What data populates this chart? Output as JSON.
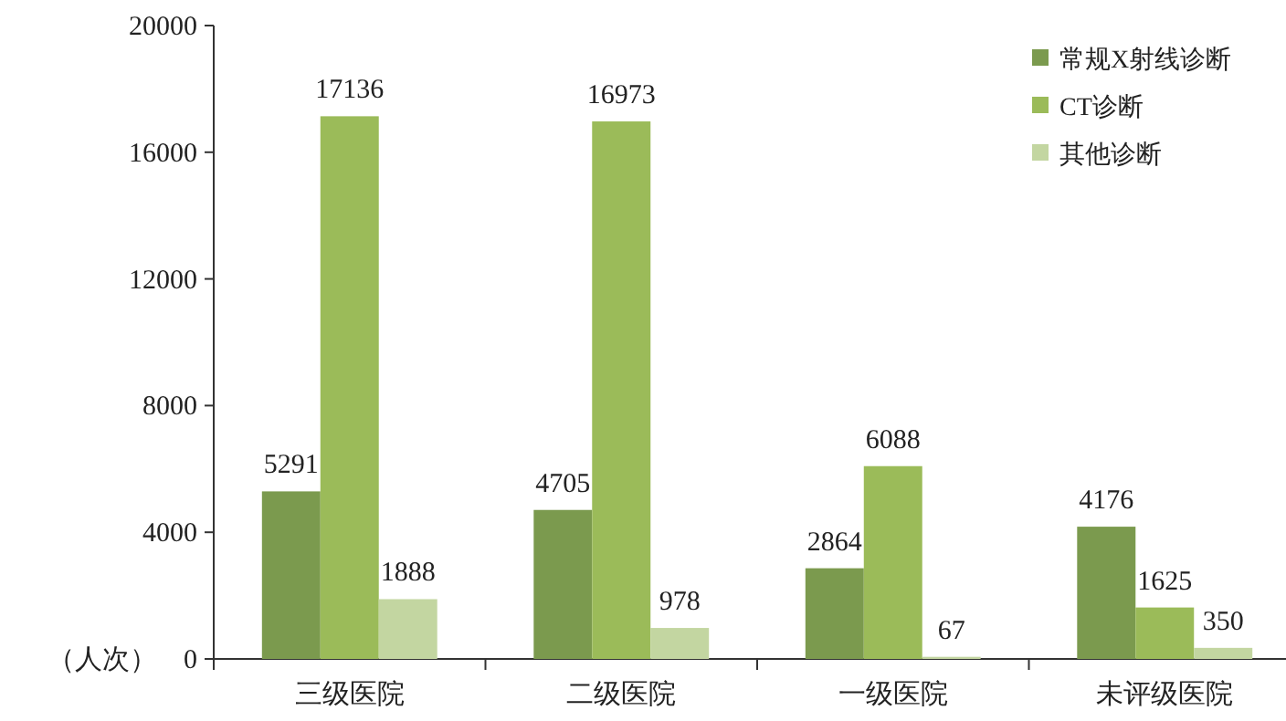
{
  "chart_data": {
    "type": "bar",
    "categories": [
      "三级医院",
      "二级医院",
      "一级医院",
      "未评级医院"
    ],
    "series": [
      {
        "name": "常规X射线诊断",
        "color": "#7b9a4e",
        "values": [
          5291,
          4705,
          2864,
          4176
        ]
      },
      {
        "name": "CT诊断",
        "color": "#9bbb59",
        "values": [
          17136,
          16973,
          6088,
          1625
        ]
      },
      {
        "name": "其他诊断",
        "color": "#c3d6a1",
        "values": [
          1888,
          978,
          67,
          350
        ]
      }
    ],
    "ylim": [
      0,
      20000
    ],
    "yticks": [
      0,
      4000,
      8000,
      12000,
      16000,
      20000
    ],
    "ylabel": "（人次）",
    "data_labels": true,
    "legend": "top right",
    "grid": false
  }
}
